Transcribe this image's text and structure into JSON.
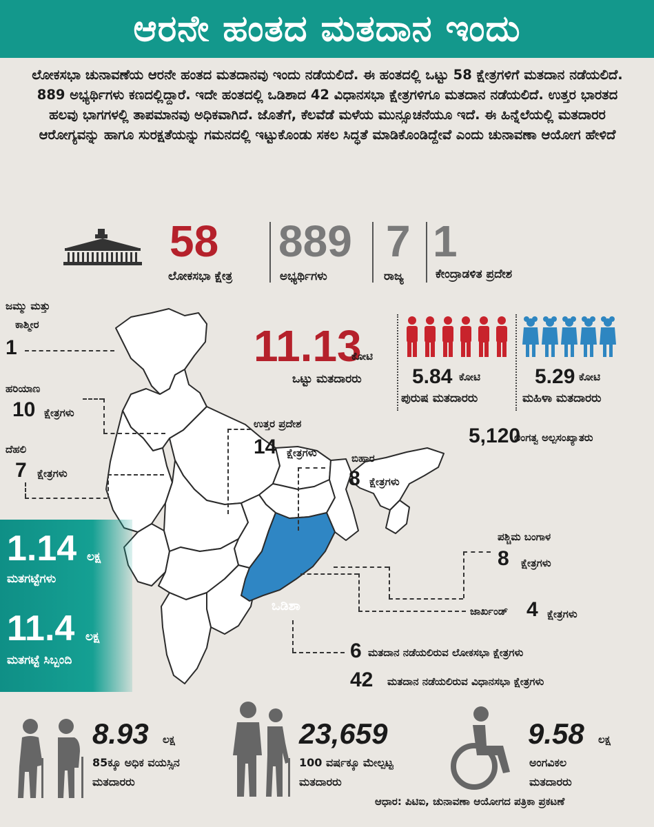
{
  "title": "ಆರನೇ ಹಂತದ ಮತದಾನ ಇಂದು",
  "intro": "ಲೋಕಸಭಾ ಚುನಾವಣೆಯ ಆರನೇ ಹಂತದ ಮತದಾನವು ಇಂದು ನಡೆಯಲಿದೆ. ಈ ಹಂತದಲ್ಲಿ ಒಟ್ಟು 58 ಕ್ಷೇತ್ರಗಳಿಗೆ ಮತದಾನ ನಡೆಯಲಿದೆ. 889 ಅಭ್ಯರ್ಥಿಗಳು ಕಣದಲ್ಲಿದ್ದಾರೆ. ಇದೇ ಹಂತದಲ್ಲಿ ಒಡಿಶಾದ 42 ವಿಧಾನಸಭಾ ಕ್ಷೇತ್ರಗಳಿಗೂ ಮತದಾನ ನಡೆಯಲಿದೆ. ಉತ್ತರ ಭಾರತದ ಹಲವು ಭಾಗಗಳಲ್ಲಿ ತಾಪಮಾನವು ಅಧಿಕವಾಗಿದೆ. ಜೊತೆಗೆ, ಕೆಲವೆಡೆ ಮಳೆಯ ಮುನ್ಸೂಚನೆಯೂ ಇದೆ. ಈ ಹಿನ್ನೆಲೆಯಲ್ಲಿ ಮತದಾರರ ಆರೋಗ್ಯವನ್ನು ಹಾಗೂ ಸುರಕ್ಷತೆಯನ್ನು ಗಮನದಲ್ಲಿ ಇಟ್ಟುಕೊಂಡು ಸಕಲ ಸಿದ್ಧತೆ ಮಾಡಿಕೊಂಡಿದ್ದೇವೆ ಎಂದು ಚುನಾವಣಾ ಆಯೋಗ ಹೇಳಿದೆ",
  "stats": {
    "constituencies": {
      "value": "58",
      "label": "ಲೋಕಸಭಾ ಕ್ಷೇತ್ರ"
    },
    "candidates": {
      "value": "889",
      "label": "ಅಭ್ಯರ್ಥಿಗಳು"
    },
    "states": {
      "value": "7",
      "label": "ರಾಜ್ಯ"
    },
    "uts": {
      "value": "1",
      "label": "ಕೇಂದ್ರಾಡಳಿತ ಪ್ರದೇಶ"
    }
  },
  "voters": {
    "total_value": "11.13",
    "total_unit": "ಕೋಟಿ",
    "total_label": "ಒಟ್ಟು ಮತದಾರರು",
    "male_value": "5.84",
    "male_unit": "ಕೋಟಿ",
    "male_label": "ಪುರುಷ ಮತದಾರರು",
    "female_value": "5.29",
    "female_unit": "ಕೋಟಿ",
    "female_label": "ಮಹಿಳಾ ಮತದಾರರು",
    "third_gender_value": "5,120",
    "third_gender_label": "ಲಿಂಗತ್ವ ಅಲ್ಪಸಂಖ್ಯಾತರು"
  },
  "states_map": {
    "jk_name_1": "ಜಮ್ಮು ಮತ್ತು",
    "jk_name_2": "ಕಾಶ್ಮೀರ",
    "jk_value": "1",
    "haryana_name": "ಹರಿಯಾಣ",
    "haryana_value": "10",
    "delhi_name": "ದೆಹಲಿ",
    "delhi_value": "7",
    "up_name": "ಉತ್ತರ ಪ್ರದೇಶ",
    "up_value": "14",
    "bihar_name": "ಬಿಹಾರ",
    "bihar_value": "8",
    "wb_name": "ಪಶ್ಚಿಮ ಬಂಗಾಳ",
    "wb_value": "8",
    "jharkhand_name": "ಜಾರ್ಖಂಡ್",
    "jharkhand_value": "4",
    "odisha_name": "ಒಡಿಶಾ",
    "odisha_ls_value": "6",
    "odisha_ls_label": "ಮತದಾನ ನಡೆಯಲಿರುವ ಲೋಕಸಭಾ ಕ್ಷೇತ್ರಗಳು",
    "odisha_as_value": "42",
    "odisha_as_label": "ಮತದಾನ ನಡೆಯಲಿರುವ ವಿಧಾನಸಭಾ ಕ್ಷೇತ್ರಗಳು",
    "kshetragalu": "ಕ್ಷೇತ್ರಗಳು"
  },
  "panel": {
    "booths_value": "1.14",
    "booths_unit": "ಲಕ್ಷ",
    "booths_label": "ಮತಗಟ್ಟೆಗಳು",
    "staff_value": "11.4",
    "staff_unit": "ಲಕ್ಷ",
    "staff_label": "ಮತಗಟ್ಟೆ ಸಿಬ್ಬಂದಿ"
  },
  "bottom": {
    "senior_value": "8.93",
    "senior_unit": "ಲಕ್ಷ",
    "senior_label_1": "85ಕ್ಕೂ ಅಧಿಕ ವಯಸ್ಸಿನ",
    "senior_label_2": "ಮತದಾರರು",
    "centenarian_value": "23,659",
    "centenarian_label_1": "100 ವರ್ಷಕ್ಕೂ ಮೇಲ್ಪಟ್ಟ",
    "centenarian_label_2": "ಮತದಾರರು",
    "disabled_value": "9.58",
    "disabled_unit": "ಲಕ್ಷ",
    "disabled_label_1": "ಅಂಗವಿಕಲ",
    "disabled_label_2": "ಮತದಾರರು",
    "source": "ಆಧಾರ: ಪಿಟಿಐ, ಚುನಾವಣಾ ಆಯೋಗದ ಪತ್ರಿಕಾ ಪ್ರಕಟಣೆ"
  },
  "colors": {
    "teal": "#13988c",
    "red": "#b5212b",
    "gray": "#7a7a7a",
    "blue": "#2f86c4",
    "male": "#c8232c",
    "female": "#2e86c1"
  }
}
